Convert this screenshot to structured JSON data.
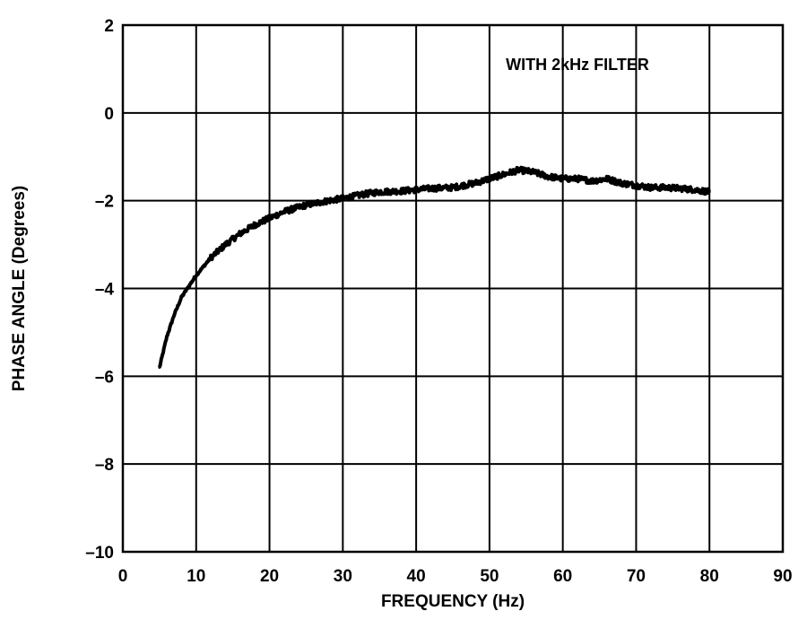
{
  "chart_data": {
    "type": "line",
    "title": "",
    "xlabel": "FREQUENCY (Hz)",
    "ylabel": "PHASE ANGLE (Degrees)",
    "xlim": [
      0,
      90
    ],
    "ylim": [
      -10,
      2
    ],
    "xticks": [
      0,
      10,
      20,
      30,
      40,
      50,
      60,
      70,
      80,
      90
    ],
    "yticks": [
      2,
      0,
      -2,
      -4,
      -6,
      -8,
      -10
    ],
    "xtick_labels": [
      "0",
      "10",
      "20",
      "30",
      "40",
      "50",
      "60",
      "70",
      "80",
      "90"
    ],
    "ytick_labels": [
      "2",
      "0",
      "–2",
      "–4",
      "–6",
      "–8",
      "–10"
    ],
    "grid": true,
    "annotation": "WITH 2kHz FILTER",
    "line_color": "#000000",
    "series": [
      {
        "x": [
          5,
          6,
          7,
          8,
          9,
          10,
          12,
          14,
          16,
          18,
          20,
          22,
          25,
          28,
          30,
          33,
          35,
          38,
          40,
          42,
          45,
          48,
          50,
          52,
          54,
          56,
          58,
          60,
          62,
          64,
          66,
          68,
          70,
          72,
          74,
          76,
          78,
          80
        ],
        "y": [
          -5.8,
          -5.1,
          -4.6,
          -4.2,
          -3.95,
          -3.7,
          -3.3,
          -3.0,
          -2.75,
          -2.55,
          -2.4,
          -2.25,
          -2.1,
          -2.0,
          -1.95,
          -1.85,
          -1.8,
          -1.78,
          -1.75,
          -1.72,
          -1.7,
          -1.6,
          -1.5,
          -1.4,
          -1.3,
          -1.35,
          -1.45,
          -1.5,
          -1.5,
          -1.55,
          -1.5,
          -1.6,
          -1.65,
          -1.7,
          -1.7,
          -1.72,
          -1.75,
          -1.8
        ]
      }
    ]
  }
}
